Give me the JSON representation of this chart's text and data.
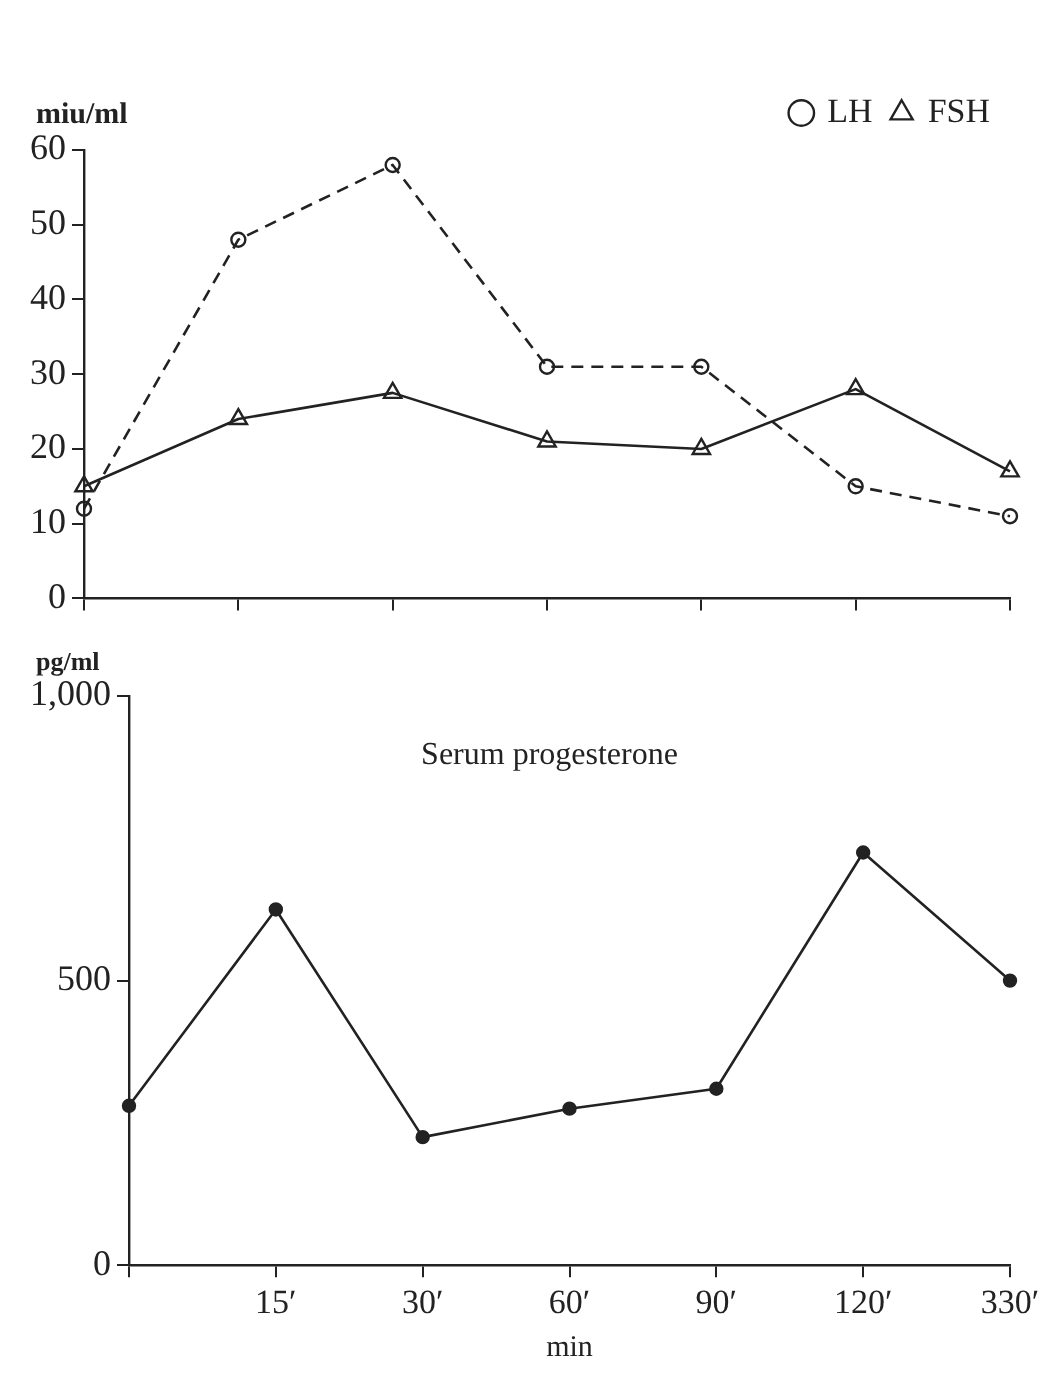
{
  "chart_data": [
    {
      "type": "line",
      "ylabel": "miu/ml",
      "categories": [
        null,
        null,
        null,
        null,
        null,
        null,
        null
      ],
      "ylim": [
        0,
        60
      ],
      "yticks": [
        0,
        10,
        20,
        30,
        40,
        50,
        60
      ],
      "tick_labels": "y",
      "grid": false,
      "legend": "top right",
      "series": [
        {
          "name": "LH",
          "color": "#222222",
          "marker": "circle",
          "line_style": "dashed",
          "values": [
            12,
            48,
            58,
            31,
            31,
            15,
            11
          ]
        },
        {
          "name": "FSH",
          "color": "#222222",
          "marker": "triangle",
          "line_style": "solid",
          "values": [
            15,
            24,
            27.5,
            21,
            20,
            28,
            17
          ]
        }
      ]
    },
    {
      "type": "line",
      "title": "Serum progesterone",
      "ylabel": "pg/ml",
      "xlabel": "min",
      "categories": [
        null,
        "15′",
        "30′",
        "60′",
        "90′",
        "120′",
        "330′"
      ],
      "ylim": [
        0,
        1000
      ],
      "yticks": [
        0,
        500,
        {
          "value": 1000,
          "label": "1,000"
        }
      ],
      "grid": false,
      "legend": false,
      "marker": "circle",
      "line_style": "solid",
      "series": [
        {
          "color": "#222222",
          "values": [
            280,
            625,
            225,
            275,
            310,
            725,
            500
          ]
        }
      ]
    }
  ]
}
